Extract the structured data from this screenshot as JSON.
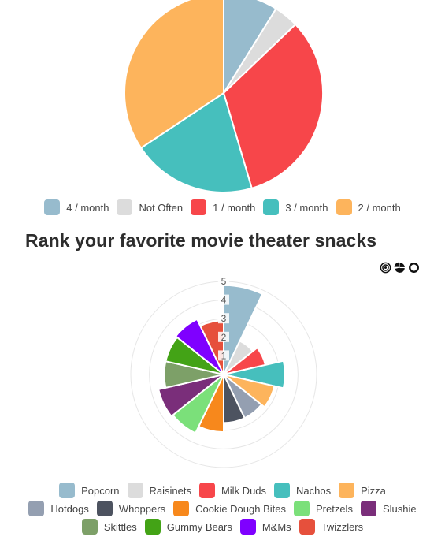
{
  "charts": {
    "frequency": {
      "chart_data": {
        "type": "pie",
        "categories": [
          "4 / month",
          "Not Often",
          "1 / month",
          "3 / month",
          "2 / month"
        ],
        "values": [
          9.5,
          4.3,
          34.9,
          21.7,
          36.8
        ],
        "colors": [
          "#97bbcd",
          "#dcdcdc",
          "#f7464a",
          "#46bfbd",
          "#fdb45c"
        ],
        "title": ""
      }
    },
    "snacks": {
      "title": "Rank your favorite movie theater snacks",
      "chart_data": {
        "type": "polar",
        "title": "Rank your favorite movie theater snacks",
        "categories": [
          "Popcorn",
          "Raisinets",
          "Milk Duds",
          "Nachos",
          "Pizza",
          "Hotdogs",
          "Whoppers",
          "Cookie Dough Bites",
          "Pretzels",
          "Slushie",
          "Skittles",
          "Gummy Bears",
          "M&Ms",
          "Twizzlers"
        ],
        "values": [
          4.8,
          2.0,
          2.3,
          3.3,
          2.8,
          2.6,
          2.6,
          3.1,
          3.5,
          3.6,
          3.2,
          3.2,
          3.3,
          2.9
        ],
        "colors": [
          "#97bbcd",
          "#dcdcdc",
          "#f7464a",
          "#46bfbd",
          "#fdb45c",
          "#949fb1",
          "#4d5360",
          "#f7881c",
          "#7be07a",
          "#7a2e7a",
          "#7da068",
          "#43a316",
          "#7f00ff",
          "#e6503c"
        ],
        "rlim": [
          0,
          5
        ],
        "ticks": [
          "1",
          "2",
          "3",
          "4",
          "5"
        ],
        "grid": true,
        "legend": "bottom"
      }
    }
  },
  "controls": [
    {
      "name": "polar-area-chart-button",
      "icon": "target-icon"
    },
    {
      "name": "pie-chart-button",
      "icon": "pie-icon"
    },
    {
      "name": "doughnut-chart-button",
      "icon": "ring-icon"
    }
  ]
}
